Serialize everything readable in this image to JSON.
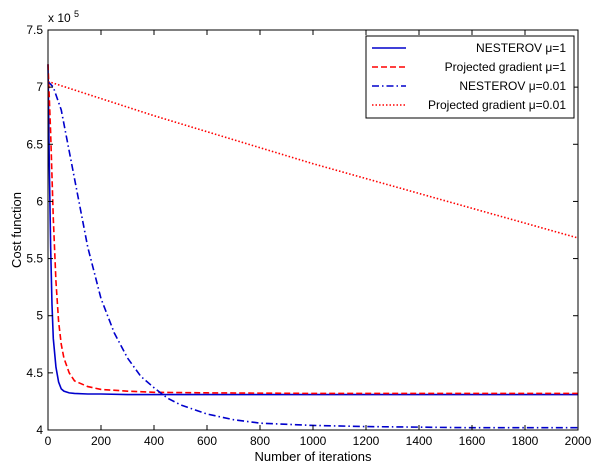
{
  "chart_data": {
    "type": "line",
    "title": "",
    "xlabel": "Number of iterations",
    "ylabel": "Cost function",
    "y_multiplier_label": "x 10",
    "y_multiplier_exponent": "5",
    "xlim": [
      0,
      2000
    ],
    "ylim": [
      4.0,
      7.5
    ],
    "x_ticks": [
      0,
      200,
      400,
      600,
      800,
      1000,
      1200,
      1400,
      1600,
      1800,
      2000
    ],
    "y_ticks": [
      4,
      4.5,
      5,
      5.5,
      6,
      6.5,
      7,
      7.5
    ],
    "x_tick_labels": [
      "0",
      "200",
      "400",
      "600",
      "800",
      "1000",
      "1200",
      "1400",
      "1600",
      "1800",
      "2000"
    ],
    "y_tick_labels": [
      "4",
      "4.5",
      "5",
      "5.5",
      "6",
      "6.5",
      "7",
      "7.5"
    ],
    "grid": false,
    "legend_position": "top-right",
    "series": [
      {
        "name": "NESTEROV μ=1",
        "color": "#0000cc",
        "style": "solid",
        "x": [
          0,
          5,
          10,
          15,
          20,
          30,
          40,
          50,
          60,
          80,
          100,
          150,
          200,
          300,
          500,
          1000,
          2000
        ],
        "y": [
          7.2,
          6.3,
          5.6,
          5.1,
          4.8,
          4.55,
          4.42,
          4.36,
          4.34,
          4.325,
          4.32,
          4.315,
          4.315,
          4.31,
          4.31,
          4.31,
          4.31
        ]
      },
      {
        "name": "Projected gradient μ=1",
        "color": "#ff0000",
        "style": "dashed",
        "x": [
          0,
          10,
          20,
          30,
          40,
          50,
          60,
          80,
          100,
          150,
          200,
          300,
          400,
          600,
          1000,
          2000
        ],
        "y": [
          7.2,
          6.6,
          5.85,
          5.3,
          4.95,
          4.75,
          4.63,
          4.5,
          4.43,
          4.38,
          4.355,
          4.34,
          4.33,
          4.325,
          4.32,
          4.32
        ]
      },
      {
        "name": "NESTEROV μ=0.01",
        "color": "#0000cc",
        "style": "dashdot",
        "x": [
          0,
          20,
          50,
          100,
          150,
          200,
          250,
          300,
          350,
          400,
          450,
          500,
          600,
          700,
          800,
          1000,
          1200,
          1400,
          1600,
          1800,
          2000
        ],
        "y": [
          7.05,
          7.0,
          6.8,
          6.2,
          5.6,
          5.15,
          4.85,
          4.63,
          4.47,
          4.37,
          4.28,
          4.22,
          4.14,
          4.09,
          4.06,
          4.04,
          4.03,
          4.025,
          4.02,
          4.02,
          4.02
        ]
      },
      {
        "name": "Projected gradient μ=0.01",
        "color": "#ff0000",
        "style": "dotted",
        "x": [
          0,
          200,
          400,
          600,
          800,
          1000,
          1200,
          1400,
          1600,
          1800,
          2000
        ],
        "y": [
          7.05,
          6.9,
          6.75,
          6.61,
          6.47,
          6.33,
          6.2,
          6.07,
          5.94,
          5.81,
          5.68
        ]
      }
    ]
  }
}
